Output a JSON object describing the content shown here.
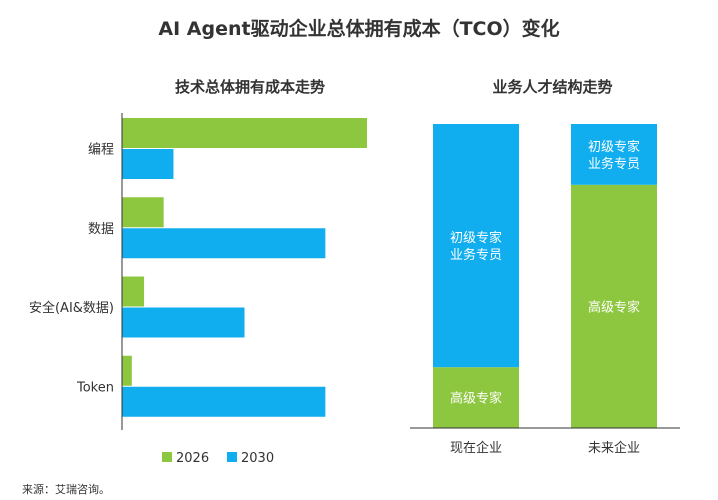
{
  "title": "AI Agent驱动企业总体拥有成本（TCO）变化",
  "source": "来源：艾瑞咨询。",
  "colors": {
    "green": "#8DC63F",
    "blue": "#11AEEF"
  },
  "chart_data": [
    {
      "type": "bar",
      "orientation": "horizontal",
      "title": "技术总体拥有成本走势",
      "categories": [
        "编程",
        "数据",
        "安全(AI&数据)",
        "Token"
      ],
      "series": [
        {
          "name": "2026",
          "color": "#8DC63F",
          "values": [
            100,
            17,
            9,
            4
          ]
        },
        {
          "name": "2030",
          "color": "#11AEEF",
          "values": [
            21,
            83,
            50,
            83
          ]
        }
      ],
      "xlim": [
        0,
        100
      ],
      "legend": "bottom",
      "grid": false
    },
    {
      "type": "bar",
      "stacked": true,
      "title": "业务人才结构走势",
      "categories": [
        "现在企业",
        "未来企业"
      ],
      "series": [
        {
          "name": "高级专家",
          "color": "#8DC63F",
          "values": [
            20,
            80
          ]
        },
        {
          "name": "初级专家\n业务专员",
          "color": "#11AEEF",
          "values": [
            80,
            20
          ]
        }
      ],
      "ylim": [
        0,
        100
      ],
      "grid": false
    }
  ]
}
